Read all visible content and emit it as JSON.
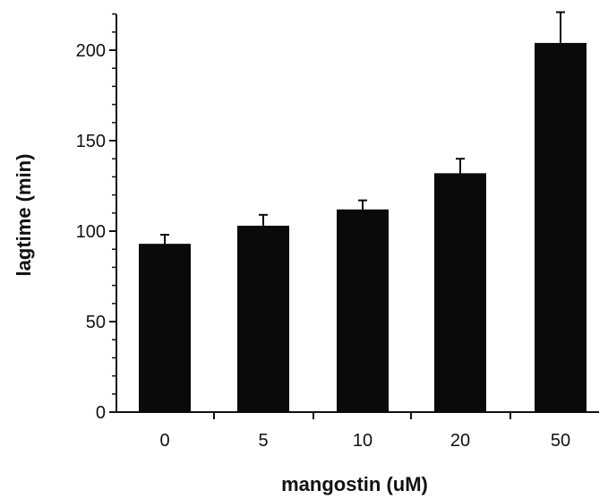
{
  "chart_data": {
    "type": "bar",
    "title": "",
    "xlabel": "mangostin (uM)",
    "ylabel": "lagtime (min)",
    "categories": [
      "0",
      "5",
      "10",
      "20",
      "50"
    ],
    "values": [
      93,
      103,
      112,
      132,
      204
    ],
    "error_upper": [
      98,
      109,
      117,
      140,
      221
    ],
    "ylim": [
      0,
      220
    ],
    "yticks": [
      0,
      50,
      100,
      150,
      200
    ],
    "y_minor_step": 10,
    "grid": false,
    "legend": "none",
    "colors": {
      "bar": "#0a0a0a",
      "axis": "#111111"
    }
  }
}
